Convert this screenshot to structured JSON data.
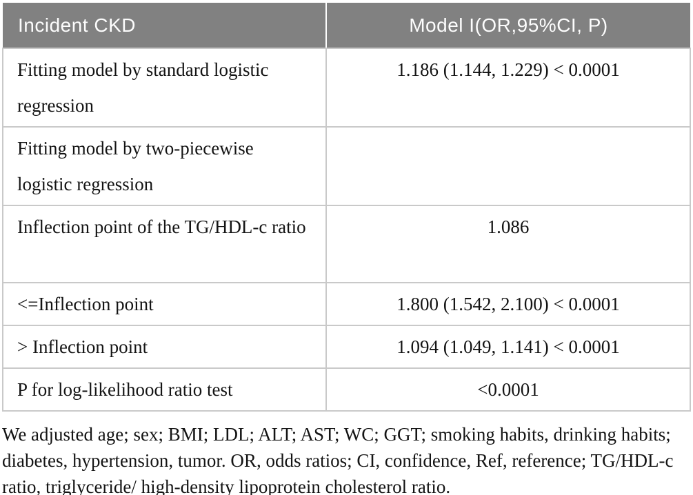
{
  "table": {
    "columns": [
      "Incident CKD",
      "Model I(OR,95%CI, P)"
    ],
    "rows": [
      {
        "label": "Fitting model by standard logistic regression",
        "value": "1.186 (1.144, 1.229) < 0.0001"
      },
      {
        "label": "Fitting model by two-piecewise logistic regression",
        "value": ""
      },
      {
        "label": "Inflection point of the TG/HDL-c ratio",
        "value": "1.086"
      },
      {
        "label": "<=Inflection point",
        "value": "1.800 (1.542, 2.100) < 0.0001"
      },
      {
        "label": "> Inflection point",
        "value": "1.094 (1.049, 1.141) < 0.0001"
      },
      {
        "label": "P for log-likelihood ratio test",
        "value": "<0.0001"
      }
    ]
  },
  "footnote": "We adjusted age; sex; BMI; LDL; ALT; AST; WC; GGT; smoking habits, drinking habits; diabetes, hypertension, tumor. OR, odds ratios; CI, confidence, Ref, reference; TG/HDL-c ratio, triglyceride/ high-density lipoprotein cholesterol ratio.",
  "colors": {
    "header_bg": "#818181",
    "header_text": "#fdfdfd",
    "border": "#c9c9c9",
    "body_text": "#141414"
  }
}
